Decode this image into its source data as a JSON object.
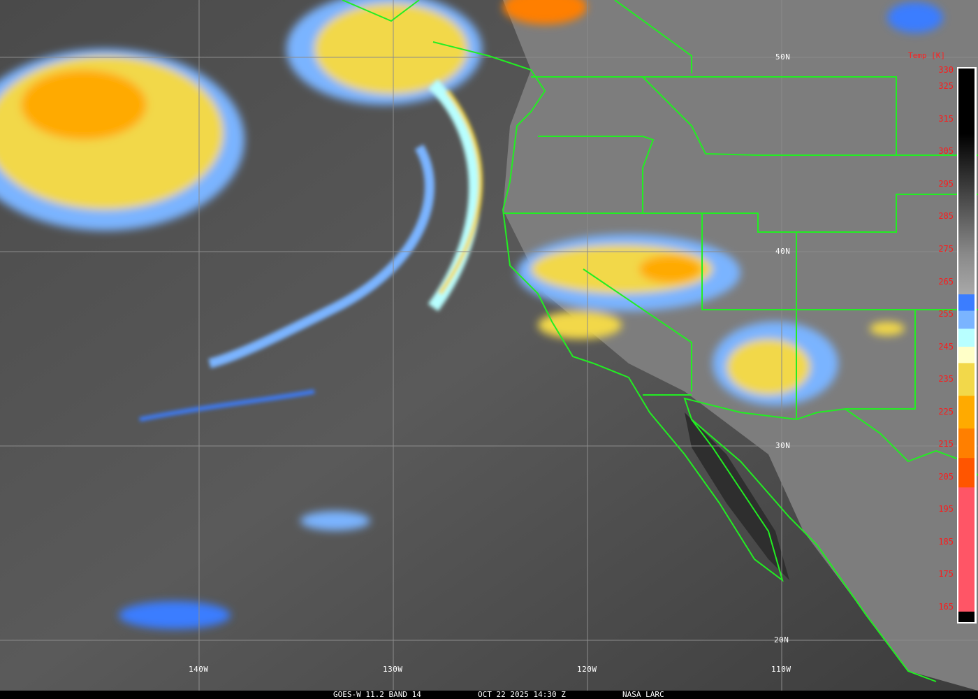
{
  "footer": {
    "satellite": "GOES-W 11.2 BAND 14",
    "datetime": "OCT 22 2025 14:30 Z",
    "credit": "NASA LARC"
  },
  "grid": {
    "latitudes": [
      "50N",
      "40N",
      "30N",
      "20N"
    ],
    "longitudes": [
      "140W",
      "130W",
      "120W",
      "110W"
    ]
  },
  "colorbar": {
    "title": "Temp [K]",
    "range_k": [
      165,
      330
    ],
    "ticks": [
      "330",
      "325",
      "315",
      "305",
      "295",
      "285",
      "275",
      "265",
      "255",
      "245",
      "235",
      "225",
      "215",
      "205",
      "195",
      "185",
      "175",
      "165"
    ],
    "stops": [
      {
        "k": 330,
        "color": "#000000"
      },
      {
        "k": 310,
        "color": "#000000"
      },
      {
        "k": 273,
        "color": "#8a8a8a"
      },
      {
        "k": 261,
        "color": "#a8a8a8"
      },
      {
        "k": 260.9,
        "color": "#3b7dff"
      },
      {
        "k": 256,
        "color": "#3b7dff"
      },
      {
        "k": 255.9,
        "color": "#7ab4ff"
      },
      {
        "k": 250.5,
        "color": "#7ab4ff"
      },
      {
        "k": 250.4,
        "color": "#b8ffff"
      },
      {
        "k": 245,
        "color": "#b8ffff"
      },
      {
        "k": 244.9,
        "color": "#ffffc8"
      },
      {
        "k": 240,
        "color": "#ffffc8"
      },
      {
        "k": 239.9,
        "color": "#f2d84a"
      },
      {
        "k": 230,
        "color": "#f2d84a"
      },
      {
        "k": 229.9,
        "color": "#ffaa00"
      },
      {
        "k": 220,
        "color": "#ffaa00"
      },
      {
        "k": 219.9,
        "color": "#ff7f00"
      },
      {
        "k": 211,
        "color": "#ff7f00"
      },
      {
        "k": 210.9,
        "color": "#ff5500"
      },
      {
        "k": 202,
        "color": "#ff5500"
      },
      {
        "k": 201.9,
        "color": "#ff5566"
      },
      {
        "k": 164,
        "color": "#ff5566"
      }
    ]
  },
  "colors": {
    "borders": "#22ee22",
    "grid": "#8c8c8c",
    "tick_text": "#ff1a1a"
  }
}
